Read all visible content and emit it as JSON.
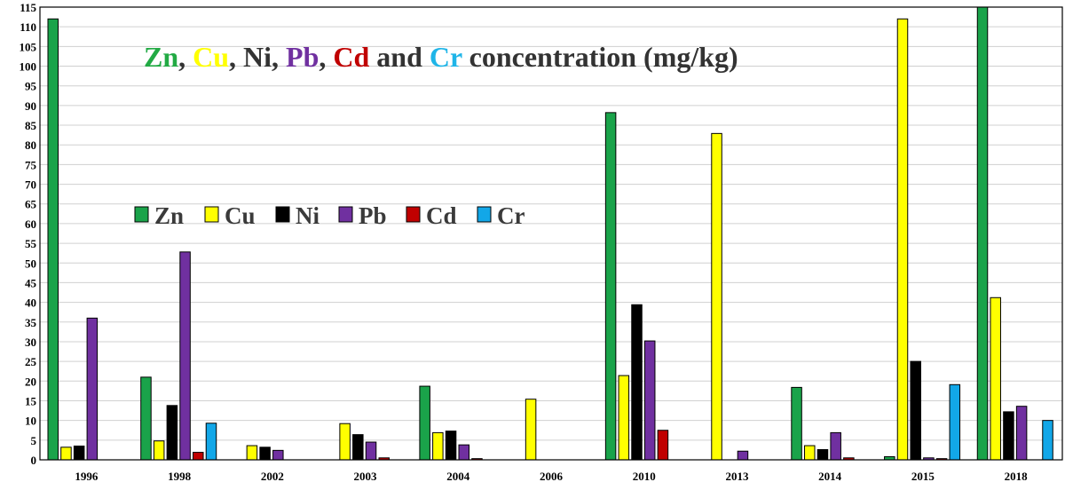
{
  "chart_data": {
    "type": "bar",
    "title_parts": [
      {
        "text": "Zn",
        "color": "#22aa44"
      },
      {
        "text": ", ",
        "color": "#333333"
      },
      {
        "text": "Cu",
        "color": "#ffff00"
      },
      {
        "text": ", Ni, ",
        "color": "#333333"
      },
      {
        "text": "Pb",
        "color": "#7030a0"
      },
      {
        "text": ", ",
        "color": "#333333"
      },
      {
        "text": "Cd",
        "color": "#c00000"
      },
      {
        "text": " and ",
        "color": "#333333"
      },
      {
        "text": "Cr",
        "color": "#1fb5e8"
      },
      {
        "text": " concentration (mg/kg)",
        "color": "#333333"
      }
    ],
    "categories": [
      "1996",
      "1998",
      "2002",
      "2003",
      "2004",
      "2006",
      "2010",
      "2013",
      "2014",
      "2015",
      "2018"
    ],
    "series": [
      {
        "name": "Zn",
        "color": "#1aa34a",
        "values": [
          112,
          21,
          null,
          null,
          18.7,
          null,
          88.2,
          null,
          18.4,
          0.8,
          115
        ]
      },
      {
        "name": "Cu",
        "color": "#ffff00",
        "values": [
          3.2,
          4.8,
          3.6,
          9.2,
          6.9,
          15.4,
          21.4,
          82.9,
          3.6,
          112,
          41.2
        ]
      },
      {
        "name": "Ni",
        "color": "#000000",
        "values": [
          3.5,
          13.8,
          3.2,
          6.4,
          7.3,
          null,
          39.4,
          null,
          2.6,
          25,
          12.2
        ]
      },
      {
        "name": "Pb",
        "color": "#7030a0",
        "values": [
          36,
          52.8,
          2.4,
          4.5,
          3.8,
          null,
          30.2,
          2.2,
          6.9,
          0.5,
          13.6
        ]
      },
      {
        "name": "Cd",
        "color": "#c00000",
        "values": [
          null,
          1.9,
          null,
          0.5,
          0.3,
          null,
          7.5,
          null,
          0.5,
          0.3,
          null
        ]
      },
      {
        "name": "Cr",
        "color": "#12a7e8",
        "values": [
          null,
          9.3,
          null,
          null,
          null,
          null,
          null,
          null,
          null,
          19.1,
          10
        ]
      }
    ],
    "ylim": [
      0,
      115
    ],
    "ytick_step": 5,
    "grid": true,
    "legend_placement": "upper-left"
  }
}
